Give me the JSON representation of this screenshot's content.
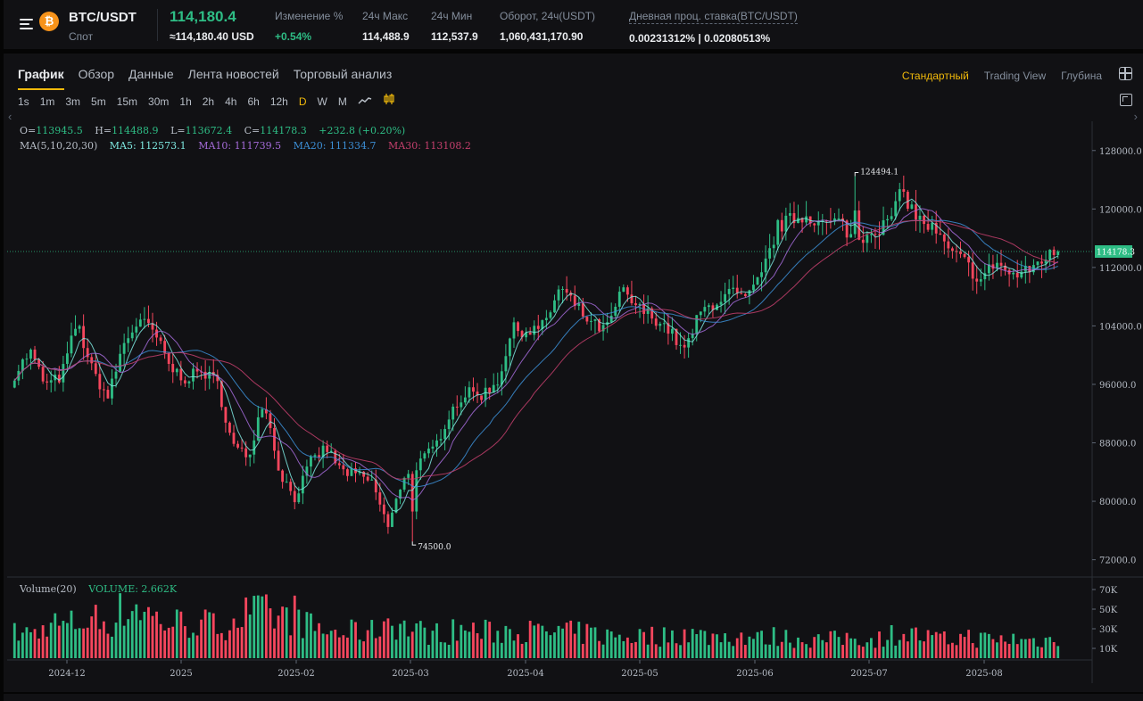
{
  "header": {
    "pair": "BTC/USDT",
    "market": "Спот",
    "coin_symbol": "₿",
    "last_price": "114,180.4",
    "last_price_usd": "≈114,180.40 USD",
    "stats": [
      {
        "label": "Изменение %",
        "value": "+0.54%",
        "green": true
      },
      {
        "label": "24ч Макс",
        "value": "114,488.9"
      },
      {
        "label": "24ч Мин",
        "value": "112,537.9"
      },
      {
        "label": "Оборот, 24ч(USDT)",
        "value": "1,060,431,170.90"
      }
    ],
    "funding": {
      "label": "Дневная проц. ставка(BTC/USDT)",
      "value": "0.00231312% | 0.02080513%"
    }
  },
  "tabs": [
    "График",
    "Обзор",
    "Данные",
    "Лента новостей",
    "Торговый анализ"
  ],
  "active_tab": "График",
  "views": [
    "Стандартный",
    "Trading View",
    "Глубина"
  ],
  "active_view": "Стандартный",
  "intervals": [
    "1s",
    "1m",
    "3m",
    "5m",
    "15m",
    "30m",
    "1h",
    "2h",
    "4h",
    "6h",
    "12h",
    "D",
    "W",
    "M"
  ],
  "active_interval": "D",
  "icons": {
    "menu": "menu-icon",
    "layout": "grid-layout-icon",
    "expand": "expand-icon",
    "line": "line-chart-icon",
    "indicator": "indicator-icon"
  },
  "legend": {
    "o": "O=",
    "o_val": "113945.5",
    "h": "H=",
    "h_val": "114488.9",
    "l": "L=",
    "l_val": "113672.4",
    "c": "C=",
    "c_val": "114178.3",
    "change": "+232.8 (+0.20%)",
    "ma_label": "MA(5,10,20,30)",
    "ma5": "MA5: 112573.1",
    "ma10": "MA10: 111739.5",
    "ma20": "MA20: 111334.7",
    "ma30": "MA30: 113108.2",
    "vol_label": "Volume(20)",
    "vol_value": "VOLUME: 2.662K"
  },
  "colors": {
    "up": "#2ebd85",
    "down": "#f6465d",
    "ma5": "#7ee8e0",
    "ma10": "#a56bd9",
    "ma20": "#3c8fd6",
    "ma30": "#c53f6d",
    "accent": "#f0b90b"
  },
  "chart_data": {
    "type": "candlestick",
    "y_ticks": [
      "128000.0",
      "120000.0",
      "112000.0",
      "104000.0",
      "96000.0",
      "88000.0",
      "80000.0",
      "72000.0"
    ],
    "ylim": [
      70000,
      132000
    ],
    "vol_ticks": [
      "70K",
      "50K",
      "30K",
      "10K"
    ],
    "x_ticks": [
      "2024-12",
      "2025",
      "2025-02",
      "2025-03",
      "2025-04",
      "2025-05",
      "2025-06",
      "2025-07",
      "2025-08"
    ],
    "last_price_label": "114178.3",
    "last_price_value": 114178.3,
    "max_label": "124494.1",
    "max_value": 124494.1,
    "min_label": "74500.0",
    "min_value": 74500.0,
    "anchors": [
      [
        97400,
        5,
        40
      ],
      [
        100500,
        10,
        40
      ],
      [
        95800,
        15,
        45
      ],
      [
        97100,
        20,
        35
      ],
      [
        104500,
        25,
        40
      ],
      [
        97800,
        30,
        45
      ],
      [
        94200,
        35,
        40
      ],
      [
        101500,
        40,
        55
      ],
      [
        104800,
        45,
        60
      ],
      [
        103000,
        50,
        45
      ],
      [
        98200,
        55,
        40
      ],
      [
        96800,
        60,
        40
      ],
      [
        97800,
        65,
        40
      ],
      [
        96300,
        70,
        35
      ],
      [
        87600,
        75,
        45
      ],
      [
        86000,
        80,
        50
      ],
      [
        94200,
        85,
        50
      ],
      [
        84100,
        90,
        45
      ],
      [
        80400,
        95,
        50
      ],
      [
        85300,
        100,
        35
      ],
      [
        87400,
        105,
        30
      ],
      [
        84100,
        110,
        28
      ],
      [
        83600,
        115,
        30
      ],
      [
        82500,
        120,
        30
      ],
      [
        76300,
        125,
        45
      ],
      [
        83600,
        130,
        35
      ],
      [
        85200,
        135,
        30
      ],
      [
        87400,
        140,
        28
      ],
      [
        92400,
        145,
        30
      ],
      [
        94800,
        150,
        33
      ],
      [
        94600,
        155,
        30
      ],
      [
        96300,
        160,
        28
      ],
      [
        103600,
        165,
        35
      ],
      [
        103200,
        170,
        30
      ],
      [
        104000,
        175,
        28
      ],
      [
        109200,
        180,
        30
      ],
      [
        106800,
        185,
        28
      ],
      [
        104300,
        190,
        28
      ],
      [
        103400,
        195,
        25
      ],
      [
        108800,
        200,
        25
      ],
      [
        106400,
        205,
        25
      ],
      [
        105300,
        210,
        25
      ],
      [
        103500,
        215,
        25
      ],
      [
        100400,
        220,
        30
      ],
      [
        105700,
        225,
        25
      ],
      [
        107300,
        230,
        25
      ],
      [
        108600,
        235,
        25
      ],
      [
        107400,
        240,
        25
      ],
      [
        111000,
        245,
        22
      ],
      [
        117500,
        250,
        25
      ],
      [
        118700,
        255,
        22
      ],
      [
        119100,
        260,
        22
      ],
      [
        117800,
        265,
        20
      ],
      [
        118300,
        270,
        22
      ],
      [
        115400,
        275,
        25
      ],
      [
        117200,
        280,
        20
      ],
      [
        117800,
        285,
        25
      ],
      [
        122400,
        290,
        30
      ],
      [
        118600,
        295,
        25
      ],
      [
        117200,
        300,
        22
      ],
      [
        114100,
        305,
        20
      ],
      [
        112800,
        310,
        25
      ],
      [
        110100,
        315,
        22
      ],
      [
        112900,
        320,
        20
      ],
      [
        110800,
        325,
        22
      ],
      [
        111400,
        330,
        20
      ],
      [
        113200,
        335,
        20
      ],
      [
        114178,
        336,
        22
      ]
    ]
  }
}
